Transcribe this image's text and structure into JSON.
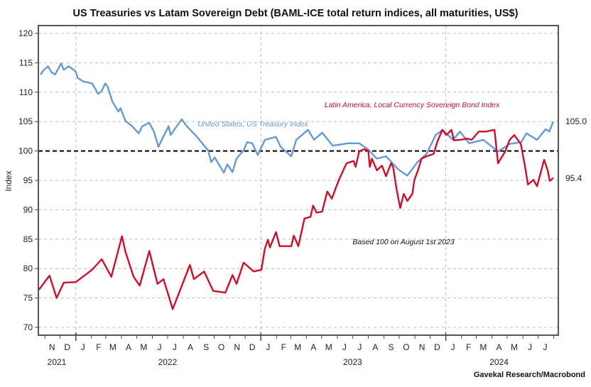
{
  "chart_data": {
    "type": "line",
    "title": "US Treasuries vs Latam Sovereign Debt (BAML-ICE total return indices, all maturities, US$)",
    "ylabel": "Index",
    "xlabel": "",
    "ylim": [
      70,
      120
    ],
    "yticks": [
      70,
      75,
      80,
      85,
      90,
      95,
      100,
      105,
      110,
      115,
      120
    ],
    "xlim": [
      "2021-10-19",
      "2024-08-10"
    ],
    "month_labels": [
      {
        "label": "N",
        "date": "2021-11-15"
      },
      {
        "label": "D",
        "date": "2021-12-15"
      },
      {
        "label": "J",
        "date": "2022-01-15"
      },
      {
        "label": "F",
        "date": "2022-02-15"
      },
      {
        "label": "M",
        "date": "2022-03-15"
      },
      {
        "label": "A",
        "date": "2022-04-15"
      },
      {
        "label": "M",
        "date": "2022-05-15"
      },
      {
        "label": "J",
        "date": "2022-06-15"
      },
      {
        "label": "J",
        "date": "2022-07-15"
      },
      {
        "label": "A",
        "date": "2022-08-15"
      },
      {
        "label": "S",
        "date": "2022-09-15"
      },
      {
        "label": "O",
        "date": "2022-10-15"
      },
      {
        "label": "N",
        "date": "2022-11-15"
      },
      {
        "label": "D",
        "date": "2022-12-15"
      },
      {
        "label": "J",
        "date": "2023-01-15"
      },
      {
        "label": "F",
        "date": "2023-02-15"
      },
      {
        "label": "M",
        "date": "2023-03-15"
      },
      {
        "label": "A",
        "date": "2023-04-15"
      },
      {
        "label": "M",
        "date": "2023-05-15"
      },
      {
        "label": "J",
        "date": "2023-06-15"
      },
      {
        "label": "J",
        "date": "2023-07-15"
      },
      {
        "label": "A",
        "date": "2023-08-15"
      },
      {
        "label": "S",
        "date": "2023-09-15"
      },
      {
        "label": "O",
        "date": "2023-10-15"
      },
      {
        "label": "N",
        "date": "2023-11-15"
      },
      {
        "label": "D",
        "date": "2023-12-15"
      },
      {
        "label": "J",
        "date": "2024-01-15"
      },
      {
        "label": "F",
        "date": "2024-02-15"
      },
      {
        "label": "M",
        "date": "2024-03-15"
      },
      {
        "label": "A",
        "date": "2024-04-15"
      },
      {
        "label": "M",
        "date": "2024-05-15"
      },
      {
        "label": "J",
        "date": "2024-06-15"
      },
      {
        "label": "J",
        "date": "2024-07-15"
      }
    ],
    "year_labels": [
      {
        "label": "2021",
        "date": "2021-11-30"
      },
      {
        "label": "2022",
        "date": "2022-07-01"
      },
      {
        "label": "2023",
        "date": "2023-07-01"
      },
      {
        "label": "2024",
        "date": "2024-04-15"
      }
    ],
    "grid": true,
    "reference_line": {
      "value": 100,
      "style": "dashed",
      "color": "#000000"
    },
    "annotation": "Based 100 on August 1st 2023",
    "source": "Gavekal Research/Macrobond",
    "series": [
      {
        "name": "United States, US Treasury Index",
        "color": "#6699cc",
        "end_label": "105.0",
        "points": [
          [
            "2021-10-23",
            113.0
          ],
          [
            "2021-10-30",
            113.8
          ],
          [
            "2021-11-07",
            114.4
          ],
          [
            "2021-11-14",
            113.4
          ],
          [
            "2021-11-21",
            113.0
          ],
          [
            "2021-12-03",
            114.9
          ],
          [
            "2021-12-08",
            113.8
          ],
          [
            "2021-12-18",
            114.4
          ],
          [
            "2021-12-31",
            113.6
          ],
          [
            "2022-01-05",
            112.4
          ],
          [
            "2022-01-16",
            111.8
          ],
          [
            "2022-02-02",
            111.5
          ],
          [
            "2022-02-14",
            109.7
          ],
          [
            "2022-02-21",
            110.2
          ],
          [
            "2022-02-28",
            111.5
          ],
          [
            "2022-03-05",
            110.9
          ],
          [
            "2022-03-14",
            108.4
          ],
          [
            "2022-03-26",
            106.7
          ],
          [
            "2022-03-30",
            107.3
          ],
          [
            "2022-04-09",
            105.1
          ],
          [
            "2022-04-21",
            104.3
          ],
          [
            "2022-05-05",
            103.0
          ],
          [
            "2022-05-12",
            104.2
          ],
          [
            "2022-05-26",
            104.8
          ],
          [
            "2022-06-04",
            103.3
          ],
          [
            "2022-06-13",
            100.7
          ],
          [
            "2022-06-23",
            102.5
          ],
          [
            "2022-07-03",
            104.2
          ],
          [
            "2022-07-07",
            102.7
          ],
          [
            "2022-07-14",
            103.6
          ],
          [
            "2022-07-29",
            105.4
          ],
          [
            "2022-08-08",
            104.2
          ],
          [
            "2022-08-28",
            102.4
          ],
          [
            "2022-09-19",
            100.1
          ],
          [
            "2022-09-25",
            98.1
          ],
          [
            "2022-10-02",
            98.9
          ],
          [
            "2022-10-20",
            96.3
          ],
          [
            "2022-10-27",
            97.7
          ],
          [
            "2022-11-06",
            96.4
          ],
          [
            "2022-11-14",
            98.7
          ],
          [
            "2022-11-28",
            100.1
          ],
          [
            "2022-12-05",
            101.5
          ],
          [
            "2022-12-15",
            101.3
          ],
          [
            "2022-12-26",
            99.3
          ],
          [
            "2023-01-09",
            101.9
          ],
          [
            "2023-01-31",
            102.4
          ],
          [
            "2023-02-09",
            100.7
          ],
          [
            "2023-03-02",
            99.1
          ],
          [
            "2023-03-12",
            101.9
          ],
          [
            "2023-04-04",
            103.6
          ],
          [
            "2023-04-16",
            101.9
          ],
          [
            "2023-05-02",
            103.1
          ],
          [
            "2023-05-23",
            100.9
          ],
          [
            "2023-06-23",
            101.3
          ],
          [
            "2023-07-14",
            101.3
          ],
          [
            "2023-07-31",
            100.3
          ],
          [
            "2023-08-18",
            98.7
          ],
          [
            "2023-09-05",
            99.1
          ],
          [
            "2023-09-29",
            96.9
          ],
          [
            "2023-10-17",
            95.8
          ],
          [
            "2023-11-06",
            98.1
          ],
          [
            "2023-11-24",
            99.5
          ],
          [
            "2023-12-12",
            102.7
          ],
          [
            "2023-12-26",
            103.6
          ],
          [
            "2024-01-15",
            101.9
          ],
          [
            "2024-01-29",
            103.3
          ],
          [
            "2024-02-16",
            101.3
          ],
          [
            "2024-03-15",
            101.9
          ],
          [
            "2024-04-13",
            99.9
          ],
          [
            "2024-05-06",
            101.2
          ],
          [
            "2024-05-29",
            101.5
          ],
          [
            "2024-06-08",
            103.0
          ],
          [
            "2024-06-29",
            101.9
          ],
          [
            "2024-07-16",
            103.7
          ],
          [
            "2024-07-23",
            103.3
          ],
          [
            "2024-07-31",
            105.0
          ]
        ]
      },
      {
        "name": "Latin America, Local Currency Sovereign Bond Index",
        "color": "#c8102e",
        "end_label": "95.4",
        "points": [
          [
            "2021-10-20",
            76.4
          ],
          [
            "2021-11-10",
            78.8
          ],
          [
            "2021-11-24",
            75.0
          ],
          [
            "2021-12-08",
            77.6
          ],
          [
            "2022-01-01",
            77.7
          ],
          [
            "2022-02-02",
            79.8
          ],
          [
            "2022-02-21",
            81.6
          ],
          [
            "2022-03-12",
            78.6
          ],
          [
            "2022-04-02",
            85.5
          ],
          [
            "2022-04-09",
            82.8
          ],
          [
            "2022-04-25",
            78.6
          ],
          [
            "2022-05-07",
            77.1
          ],
          [
            "2022-05-26",
            83.0
          ],
          [
            "2022-06-11",
            77.4
          ],
          [
            "2022-06-23",
            78.2
          ],
          [
            "2022-07-11",
            73.1
          ],
          [
            "2022-08-14",
            80.6
          ],
          [
            "2022-08-22",
            78.2
          ],
          [
            "2022-09-11",
            79.5
          ],
          [
            "2022-09-29",
            76.2
          ],
          [
            "2022-10-23",
            75.9
          ],
          [
            "2022-11-06",
            78.9
          ],
          [
            "2022-11-14",
            77.4
          ],
          [
            "2022-11-28",
            81.0
          ],
          [
            "2022-12-18",
            79.5
          ],
          [
            "2023-01-02",
            79.8
          ],
          [
            "2023-01-09",
            83.4
          ],
          [
            "2023-01-15",
            84.9
          ],
          [
            "2023-01-19",
            83.6
          ],
          [
            "2023-01-31",
            86.2
          ],
          [
            "2023-02-07",
            83.8
          ],
          [
            "2023-03-02",
            83.8
          ],
          [
            "2023-03-07",
            85.6
          ],
          [
            "2023-03-16",
            83.8
          ],
          [
            "2023-03-28",
            88.5
          ],
          [
            "2023-04-09",
            88.8
          ],
          [
            "2023-04-14",
            90.7
          ],
          [
            "2023-04-21",
            89.5
          ],
          [
            "2023-05-02",
            89.7
          ],
          [
            "2023-05-12",
            93.1
          ],
          [
            "2023-05-21",
            91.9
          ],
          [
            "2023-06-04",
            95.1
          ],
          [
            "2023-06-19",
            97.9
          ],
          [
            "2023-07-03",
            98.3
          ],
          [
            "2023-07-07",
            97.3
          ],
          [
            "2023-07-14",
            99.9
          ],
          [
            "2023-07-24",
            100.3
          ],
          [
            "2023-08-01",
            100.0
          ],
          [
            "2023-08-04",
            97.3
          ],
          [
            "2023-08-08",
            98.7
          ],
          [
            "2023-08-18",
            96.7
          ],
          [
            "2023-08-28",
            97.5
          ],
          [
            "2023-09-05",
            95.7
          ],
          [
            "2023-09-15",
            97.9
          ],
          [
            "2023-09-19",
            97.3
          ],
          [
            "2023-09-26",
            93.4
          ],
          [
            "2023-10-03",
            90.3
          ],
          [
            "2023-10-10",
            92.7
          ],
          [
            "2023-10-17",
            91.5
          ],
          [
            "2023-10-27",
            92.7
          ],
          [
            "2023-10-31",
            95.1
          ],
          [
            "2023-11-07",
            96.7
          ],
          [
            "2023-11-14",
            98.7
          ],
          [
            "2023-11-24",
            99.1
          ],
          [
            "2023-12-08",
            99.5
          ],
          [
            "2023-12-15",
            101.5
          ],
          [
            "2023-12-25",
            103.6
          ],
          [
            "2024-01-02",
            102.7
          ],
          [
            "2024-01-12",
            103.6
          ],
          [
            "2024-01-17",
            101.8
          ],
          [
            "2024-01-29",
            101.9
          ],
          [
            "2024-02-12",
            102.1
          ],
          [
            "2024-02-21",
            101.9
          ],
          [
            "2024-03-06",
            103.3
          ],
          [
            "2024-03-20",
            103.3
          ],
          [
            "2024-04-06",
            103.6
          ],
          [
            "2024-04-13",
            97.9
          ],
          [
            "2024-04-27",
            99.9
          ],
          [
            "2024-05-06",
            101.9
          ],
          [
            "2024-05-15",
            102.7
          ],
          [
            "2024-05-28",
            101.2
          ],
          [
            "2024-06-05",
            97.5
          ],
          [
            "2024-06-11",
            94.3
          ],
          [
            "2024-06-22",
            95.1
          ],
          [
            "2024-06-29",
            94.0
          ],
          [
            "2024-07-13",
            98.5
          ],
          [
            "2024-07-20",
            96.7
          ],
          [
            "2024-07-24",
            94.9
          ],
          [
            "2024-07-31",
            95.4
          ]
        ]
      }
    ]
  }
}
